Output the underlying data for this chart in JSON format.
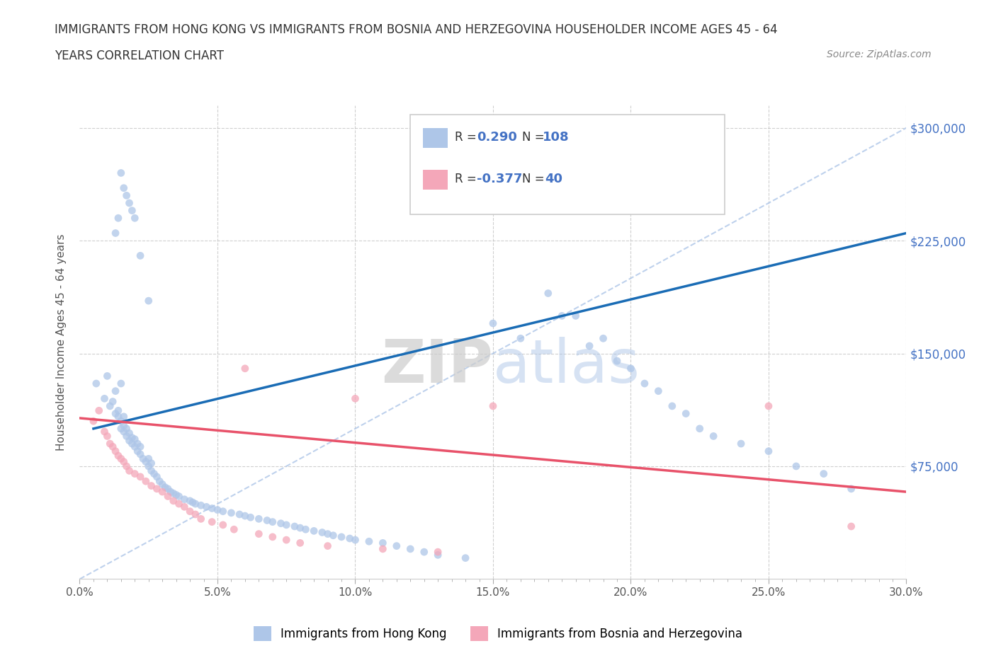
{
  "title_line1": "IMMIGRANTS FROM HONG KONG VS IMMIGRANTS FROM BOSNIA AND HERZEGOVINA HOUSEHOLDER INCOME AGES 45 - 64",
  "title_line2": "YEARS CORRELATION CHART",
  "source_text": "Source: ZipAtlas.com",
  "ylabel": "Householder Income Ages 45 - 64 years",
  "xlim": [
    0.0,
    0.3
  ],
  "ylim": [
    0,
    315000
  ],
  "hk_R": "0.290",
  "hk_N": "108",
  "bh_R": "-0.377",
  "bh_N": "40",
  "hk_color": "#aec6e8",
  "bh_color": "#f4a7b9",
  "hk_line_color": "#1a6cb5",
  "bh_line_color": "#e8526a",
  "diag_color": "#aec6e8",
  "stat_color": "#4472c4",
  "grid_color": "#bbbbbb",
  "ytick_vals": [
    75000,
    150000,
    225000,
    300000
  ],
  "ytick_labels": [
    "$75,000",
    "$150,000",
    "$225,000",
    "$300,000"
  ],
  "xtick_major_vals": [
    0.0,
    0.05,
    0.1,
    0.15,
    0.2,
    0.25,
    0.3
  ],
  "xtick_major_labels": [
    "0.0%",
    "5.0%",
    "10.0%",
    "15.0%",
    "20.0%",
    "25.0%",
    "30.0%"
  ],
  "watermark_zip": "ZIP",
  "watermark_atlas": "atlas",
  "hk_scatter_x": [
    0.006,
    0.009,
    0.01,
    0.011,
    0.012,
    0.013,
    0.013,
    0.014,
    0.014,
    0.015,
    0.015,
    0.015,
    0.016,
    0.016,
    0.016,
    0.017,
    0.017,
    0.018,
    0.018,
    0.019,
    0.019,
    0.02,
    0.02,
    0.021,
    0.021,
    0.022,
    0.022,
    0.023,
    0.024,
    0.025,
    0.025,
    0.026,
    0.026,
    0.027,
    0.028,
    0.029,
    0.03,
    0.031,
    0.032,
    0.033,
    0.034,
    0.035,
    0.036,
    0.038,
    0.04,
    0.041,
    0.042,
    0.044,
    0.046,
    0.048,
    0.05,
    0.052,
    0.055,
    0.058,
    0.06,
    0.062,
    0.065,
    0.068,
    0.07,
    0.073,
    0.075,
    0.078,
    0.08,
    0.082,
    0.085,
    0.088,
    0.09,
    0.092,
    0.095,
    0.098,
    0.1,
    0.105,
    0.11,
    0.115,
    0.12,
    0.125,
    0.13,
    0.14,
    0.15,
    0.16,
    0.17,
    0.175,
    0.18,
    0.185,
    0.19,
    0.195,
    0.2,
    0.205,
    0.21,
    0.215,
    0.22,
    0.225,
    0.23,
    0.24,
    0.25,
    0.26,
    0.27,
    0.28,
    0.013,
    0.014,
    0.015,
    0.016,
    0.017,
    0.018,
    0.019,
    0.02,
    0.022,
    0.025
  ],
  "hk_scatter_y": [
    130000,
    120000,
    135000,
    115000,
    118000,
    110000,
    125000,
    108000,
    112000,
    105000,
    100000,
    130000,
    98000,
    102000,
    108000,
    95000,
    100000,
    92000,
    97000,
    90000,
    94000,
    88000,
    93000,
    85000,
    90000,
    83000,
    88000,
    80000,
    78000,
    75000,
    80000,
    72000,
    77000,
    70000,
    68000,
    65000,
    63000,
    61000,
    60000,
    58000,
    57000,
    56000,
    55000,
    53000,
    52000,
    51000,
    50000,
    49000,
    48000,
    47000,
    46000,
    45000,
    44000,
    43000,
    42000,
    41000,
    40000,
    39000,
    38000,
    37000,
    36000,
    35000,
    34000,
    33000,
    32000,
    31000,
    30000,
    29000,
    28000,
    27000,
    26000,
    25000,
    24000,
    22000,
    20000,
    18000,
    16000,
    14000,
    170000,
    160000,
    190000,
    175000,
    175000,
    155000,
    160000,
    145000,
    140000,
    130000,
    125000,
    115000,
    110000,
    100000,
    95000,
    90000,
    85000,
    75000,
    70000,
    60000,
    230000,
    240000,
    270000,
    260000,
    255000,
    250000,
    245000,
    240000,
    215000,
    185000
  ],
  "bh_scatter_x": [
    0.005,
    0.007,
    0.009,
    0.01,
    0.011,
    0.012,
    0.013,
    0.014,
    0.015,
    0.016,
    0.017,
    0.018,
    0.02,
    0.022,
    0.024,
    0.026,
    0.028,
    0.03,
    0.032,
    0.034,
    0.036,
    0.038,
    0.04,
    0.042,
    0.044,
    0.048,
    0.052,
    0.056,
    0.06,
    0.065,
    0.07,
    0.075,
    0.08,
    0.09,
    0.1,
    0.11,
    0.13,
    0.15,
    0.25,
    0.28
  ],
  "bh_scatter_y": [
    105000,
    112000,
    98000,
    95000,
    90000,
    88000,
    85000,
    82000,
    80000,
    78000,
    75000,
    72000,
    70000,
    68000,
    65000,
    62000,
    60000,
    58000,
    55000,
    52000,
    50000,
    48000,
    45000,
    43000,
    40000,
    38000,
    36000,
    33000,
    140000,
    30000,
    28000,
    26000,
    24000,
    22000,
    120000,
    20000,
    18000,
    115000,
    115000,
    35000
  ],
  "hk_trend_x0": 0.005,
  "hk_trend_y0": 100000,
  "hk_trend_x1": 0.3,
  "hk_trend_y1": 230000,
  "bh_trend_x0": 0.0,
  "bh_trend_y0": 107000,
  "bh_trend_x1": 0.3,
  "bh_trend_y1": 58000,
  "legend_hk": "Immigrants from Hong Kong",
  "legend_bh": "Immigrants from Bosnia and Herzegovina"
}
